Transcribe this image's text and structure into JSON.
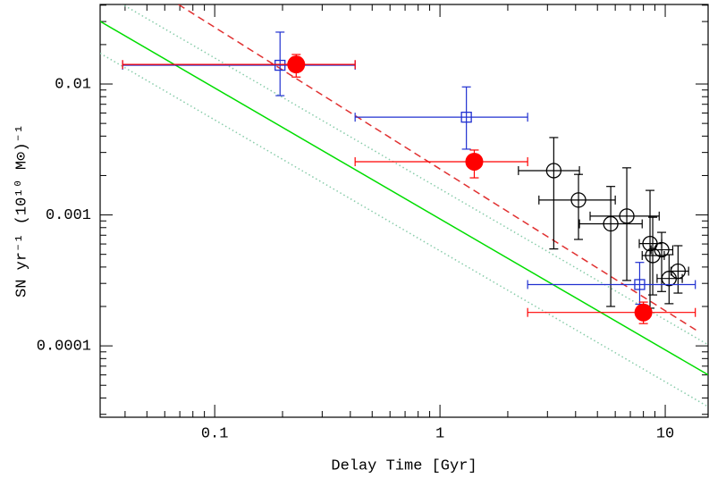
{
  "chart_data": {
    "type": "scatter",
    "xlabel": "Delay Time [Gyr]",
    "ylabel": "SN yr⁻¹ (10¹⁰ M⊙)⁻¹",
    "xlog": true,
    "ylog": true,
    "xlim": [
      0.031,
      15.5
    ],
    "ylim": [
      2.85e-05,
      0.0405
    ],
    "xticks": [
      0.1,
      1,
      10
    ],
    "yticks": [
      0.0001,
      0.001,
      0.01
    ],
    "xminor": [
      0.04,
      0.05,
      0.06,
      0.07,
      0.08,
      0.09,
      0.2,
      0.3,
      0.4,
      0.5,
      0.6,
      0.7,
      0.8,
      0.9,
      2,
      3,
      4,
      5,
      6,
      7,
      8,
      9
    ],
    "yminor": [
      3e-05,
      4e-05,
      5e-05,
      6e-05,
      7e-05,
      8e-05,
      9e-05,
      0.0002,
      0.0003,
      0.0004,
      0.0005,
      0.0006,
      0.0007,
      0.0008,
      0.0009,
      0.002,
      0.003,
      0.004,
      0.005,
      0.006,
      0.007,
      0.008,
      0.009,
      0.02,
      0.03,
      0.04
    ],
    "lines": [
      {
        "color": "#00dd00",
        "style": "solid",
        "x": [
          0.031,
          15.5
        ],
        "y": [
          0.0301,
          6.01e-05
        ]
      },
      {
        "color": "#88ccaa",
        "style": "dotted",
        "x": [
          0.031,
          15.5
        ],
        "y": [
          0.051,
          0.000102
        ]
      },
      {
        "color": "#88ccaa",
        "style": "dotted",
        "x": [
          0.031,
          15.5
        ],
        "y": [
          0.01716,
          3.43e-05
        ]
      },
      {
        "color": "#e03030",
        "style": "dashed",
        "x": [
          0.069,
          13.9
        ],
        "y": [
          0.0405,
          0.00013
        ]
      }
    ],
    "series": [
      {
        "marker": "open-circle",
        "color": "#000000",
        "x": [
          3.2,
          4.12,
          5.73,
          6.75,
          8.56,
          8.8,
          9.64,
          10.4,
          11.4
        ],
        "y": [
          0.00218,
          0.0013,
          0.000855,
          0.00098,
          0.000604,
          0.00049,
          0.000542,
          0.000327,
          0.000372
        ],
        "x_lo": [
          2.23,
          2.75,
          4.16,
          4.64,
          7.67,
          7.9,
          8.65,
          9.2,
          10.6
        ],
        "x_hi": [
          4.16,
          6.0,
          7.9,
          9.4,
          9.64,
          9.9,
          10.8,
          11.9,
          12.7
        ],
        "y_lo": [
          0.00055,
          0.00065,
          0.0002,
          0.000316,
          0.000194,
          0.000245,
          0.00026,
          0.00021,
          0.000253
        ],
        "y_hi": [
          0.0039,
          0.00204,
          0.00165,
          0.00229,
          0.00154,
          0.00096,
          0.000736,
          0.000497,
          0.000582
        ]
      },
      {
        "marker": "open-square",
        "color": "#2030d0",
        "x": [
          0.195,
          1.31,
          7.7
        ],
        "y": [
          0.0139,
          0.00558,
          0.000294
        ],
        "x_lo": [
          0.039,
          0.42,
          2.45
        ],
        "x_hi": [
          0.42,
          2.45,
          13.6
        ],
        "y_lo": [
          0.00815,
          0.00318,
          0.000208
        ],
        "y_hi": [
          0.0249,
          0.0095,
          0.000434
        ]
      },
      {
        "marker": "filled-circle",
        "color": "#ff0000",
        "x": [
          0.23,
          1.42,
          8.0
        ],
        "y": [
          0.0141,
          0.00255,
          0.00018
        ],
        "x_lo": [
          0.039,
          0.42,
          2.45
        ],
        "x_hi": [
          0.42,
          2.45,
          13.6
        ],
        "y_lo": [
          0.0113,
          0.00192,
          0.000148
        ],
        "y_hi": [
          0.0168,
          0.00313,
          0.000216
        ]
      }
    ]
  }
}
